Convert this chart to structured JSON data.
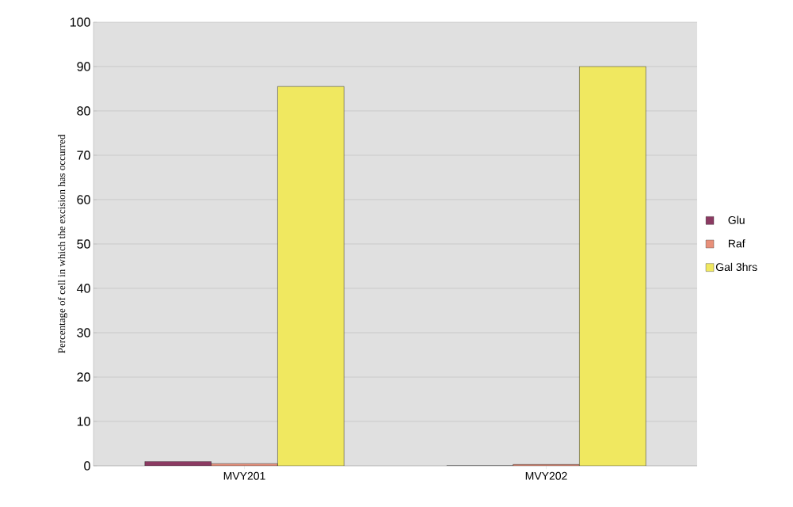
{
  "chart_data": {
    "type": "bar",
    "ylabel": "Percentage of cell in which the excision has occurred",
    "categories": [
      "MVY201",
      "MVY202"
    ],
    "series": [
      {
        "name": "Glu",
        "color": "#8b3a62",
        "values": [
          1,
          0
        ]
      },
      {
        "name": "Raf",
        "color": "#e8907a",
        "values": [
          0.5,
          0.3
        ]
      },
      {
        "name": "Gal 3hrs",
        "color": "#f0e860",
        "values": [
          85.5,
          90
        ]
      }
    ],
    "ylim": [
      0,
      100
    ],
    "yticks": [
      0,
      10,
      20,
      30,
      40,
      50,
      60,
      70,
      80,
      90,
      100
    ],
    "grid": "y",
    "legend": "right"
  }
}
